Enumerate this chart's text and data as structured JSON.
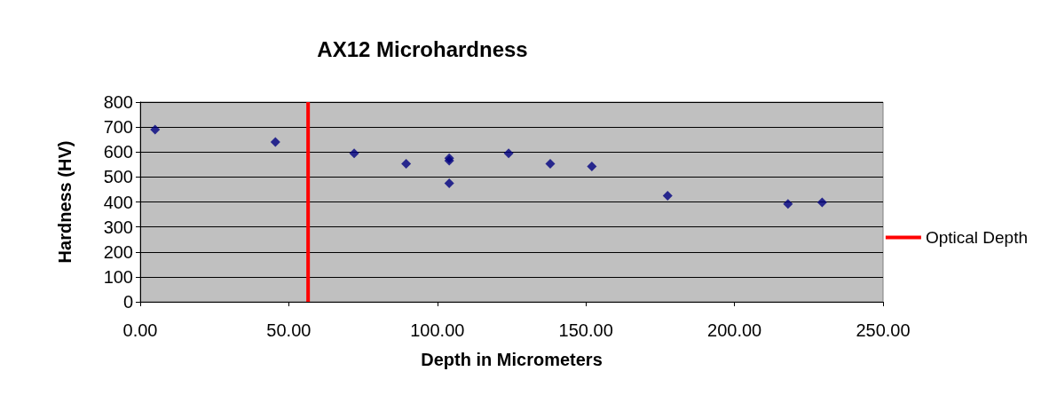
{
  "chart_data": {
    "type": "scatter",
    "title": "AX12 Microhardness",
    "xlabel": "Depth in Micrometers",
    "ylabel": "Hardness (HV)",
    "x": [
      5,
      45.5,
      72,
      89.5,
      104,
      104,
      104,
      124,
      138,
      152,
      177.5,
      218,
      229.5
    ],
    "series": [
      {
        "color": "#000080",
        "values": [
          690,
          640,
          595,
          553,
          575,
          565,
          475,
          595,
          553,
          542,
          425,
          392,
          398
        ]
      },
      {
        "type": "line",
        "name": "Optical Depth",
        "color": "#ff0000",
        "marker": "none",
        "x": [
          56.5,
          56.5
        ],
        "values": [
          0,
          800
        ]
      }
    ],
    "xlim": [
      0,
      250
    ],
    "xticks": [
      {
        "value": 0,
        "label": "0.00"
      },
      {
        "value": 50,
        "label": "50.00"
      },
      {
        "value": 100,
        "label": "100.00"
      },
      {
        "value": 150,
        "label": "150.00"
      },
      {
        "value": 200,
        "label": "200.00"
      },
      {
        "value": 250,
        "label": "250.00"
      }
    ],
    "ylim": [
      0,
      800
    ],
    "yticks": [
      0,
      100,
      200,
      300,
      400,
      500,
      600,
      700,
      800
    ],
    "grid": "y",
    "marker": "diamond",
    "legend": "right",
    "line_style": "solid"
  }
}
